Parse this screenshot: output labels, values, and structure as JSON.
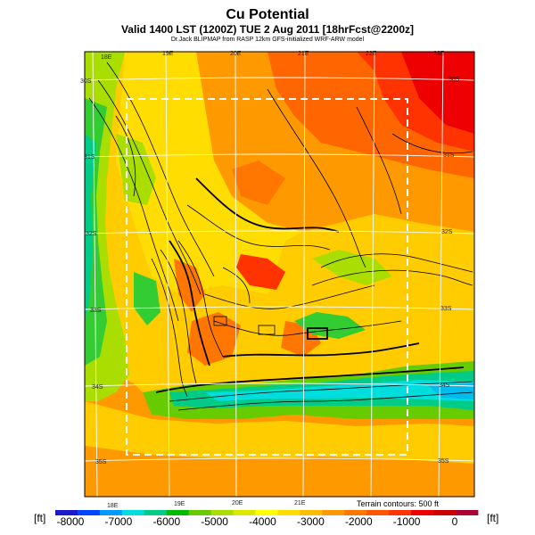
{
  "header": {
    "title": "Cu Potential",
    "subtitle": "Valid 1400 LST (1200Z) TUE 2 Aug 2011 [18hrFcst@2200z]",
    "model_note": "Dr.Jack BLIPMAP from RASP 12km GFS-initialized WRF-ARW model"
  },
  "map": {
    "lon_labels_top": [
      "18E",
      "19E",
      "20E",
      "21E",
      "22E",
      "23E"
    ],
    "lon_labels_bottom": [
      "18E",
      "19E",
      "20E",
      "21E"
    ],
    "lat_labels_left": [
      "30S",
      "31S",
      "32S",
      "33S",
      "34S",
      "35S"
    ],
    "lat_labels_right": [
      "30S",
      "31S",
      "32S",
      "33S",
      "34S",
      "35S"
    ],
    "terrain_note": "Terrain contours: 500 ft",
    "colors": {
      "ocean_south": "#ff9900",
      "interior_high": "#ff2200",
      "interior_mid": "#ffdd00",
      "coastal_low": "#33cc33",
      "trough": "#00d5d5",
      "extreme_low": "#0000cc"
    }
  },
  "colorbar": {
    "unit_left": "[ft]",
    "unit_right": "[ft]",
    "tick_labels": [
      "-8000",
      "-7000",
      "-6000",
      "-5000",
      "-4000",
      "-3000",
      "-2000",
      "-1000",
      "0"
    ],
    "colors": [
      "#1a1acc",
      "#0044ff",
      "#0099ff",
      "#00dddd",
      "#00cc88",
      "#00bb00",
      "#66cc00",
      "#aadd00",
      "#dde800",
      "#ffff00",
      "#ffdd00",
      "#ffbb00",
      "#ff9900",
      "#ff7700",
      "#ff5500",
      "#ff3300",
      "#ee0000",
      "#cc0000",
      "#aa0033"
    ]
  }
}
